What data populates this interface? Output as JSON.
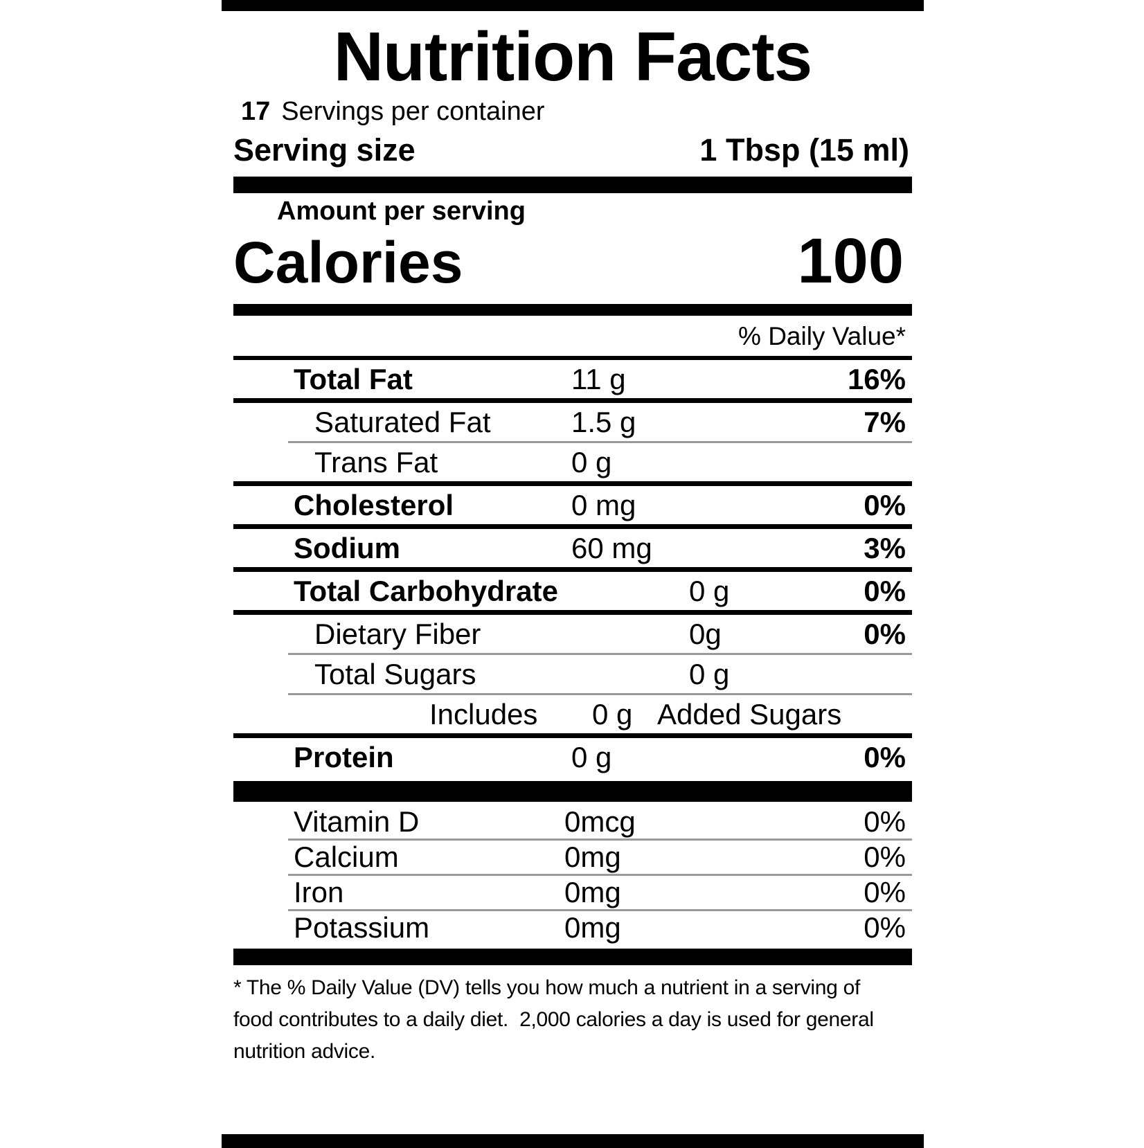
{
  "label": {
    "title": "Nutrition Facts",
    "servings_per_container": {
      "count": "17",
      "text": "Servings per container"
    },
    "serving_size": {
      "label": "Serving size",
      "value": "1 Tbsp (15 ml)"
    },
    "amount_per_serving": "Amount per serving",
    "calories": {
      "label": "Calories",
      "value": "100"
    },
    "daily_value_header": "% Daily Value*",
    "rows": [
      {
        "name": "Total Fat",
        "amount": "11 g",
        "dv": "16%",
        "bold": true,
        "indent": false,
        "amount_col": "a",
        "dv_bold": true,
        "rule": "thick"
      },
      {
        "name": "Saturated Fat",
        "amount": "1.5 g",
        "dv": "7%",
        "bold": false,
        "indent": true,
        "amount_col": "a",
        "dv_bold": true,
        "rule": "thin"
      },
      {
        "name": "Trans Fat",
        "amount": "0 g",
        "dv": "",
        "bold": false,
        "indent": true,
        "amount_col": "a",
        "dv_bold": false,
        "rule": "thick"
      },
      {
        "name": "Cholesterol",
        "amount": "0 mg",
        "dv": "0%",
        "bold": true,
        "indent": false,
        "amount_col": "a",
        "dv_bold": true,
        "rule": "thick"
      },
      {
        "name": "Sodium",
        "amount": "60 mg",
        "dv": "3%",
        "bold": true,
        "indent": false,
        "amount_col": "a",
        "dv_bold": true,
        "rule": "thick"
      },
      {
        "name": "Total Carbohydrate",
        "amount": "0 g",
        "dv": "0%",
        "bold": true,
        "indent": false,
        "amount_col": "b",
        "dv_bold": true,
        "rule": "thick"
      },
      {
        "name": "Dietary Fiber",
        "amount": "0g",
        "dv": "0%",
        "bold": false,
        "indent": true,
        "amount_col": "b",
        "dv_bold": true,
        "rule": "thin"
      },
      {
        "name": "Total Sugars",
        "amount": "0 g",
        "dv": "",
        "bold": false,
        "indent": true,
        "amount_col": "b",
        "dv_bold": false,
        "rule": "thin"
      },
      {
        "type": "includes",
        "prefix": "Includes",
        "amount": "0 g",
        "suffix": "Added Sugars",
        "rule": "thick"
      },
      {
        "name": "Protein",
        "amount": "0 g",
        "dv": "0%",
        "bold": true,
        "indent": false,
        "amount_col": "a",
        "dv_bold": true,
        "rule": "bigbar"
      },
      {
        "name": "Vitamin D",
        "amount": "0mcg",
        "dv": "0%",
        "bold": false,
        "indent": false,
        "amount_col": "c",
        "dv_bold": false,
        "rule": "thin",
        "compact": true
      },
      {
        "name": "Calcium",
        "amount": "0mg",
        "dv": "0%",
        "bold": false,
        "indent": false,
        "amount_col": "c",
        "dv_bold": false,
        "rule": "thin",
        "compact": true
      },
      {
        "name": "Iron",
        "amount": "0mg",
        "dv": "0%",
        "bold": false,
        "indent": false,
        "amount_col": "c",
        "dv_bold": false,
        "rule": "thin",
        "compact": true
      },
      {
        "name": "Potassium",
        "amount": "0mg",
        "dv": "0%",
        "bold": false,
        "indent": false,
        "amount_col": "c",
        "dv_bold": false,
        "rule": "endbar",
        "compact": true
      }
    ],
    "footnote_lines": [
      "* The % Daily Value (DV) tells you how much a nutrient in a serving of",
      "food contributes to a daily diet.  2,000 calories a day is used for general",
      "nutrition advice."
    ],
    "colors": {
      "ink": "#000000",
      "paper": "#ffffff",
      "thin_rule": "#9a9a9a"
    }
  }
}
